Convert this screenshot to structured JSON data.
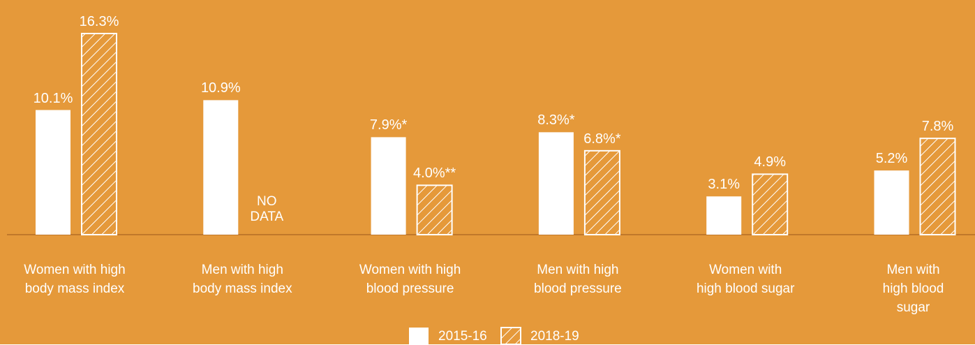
{
  "chart_data": {
    "type": "bar",
    "categories": [
      "Women with high\nbody mass index",
      "Men with high\nbody mass index",
      "Women with high\nblood pressure",
      "Men with high\nblood pressure",
      "Women with\nhigh blood sugar",
      "Men with\nhigh blood sugar"
    ],
    "series": [
      {
        "name": "2015-16",
        "color": "#ffffff",
        "pattern": "solid",
        "values": [
          10.1,
          10.9,
          7.9,
          8.3,
          3.1,
          5.2
        ],
        "value_labels": [
          "10.1%",
          "10.9%",
          "7.9%*",
          "8.3%*",
          "3.1%",
          "5.2%"
        ]
      },
      {
        "name": "2018-19",
        "color": "#ffffff",
        "pattern": "hatch",
        "values": [
          16.3,
          null,
          4.0,
          6.8,
          4.9,
          7.8
        ],
        "value_labels": [
          "16.3%",
          null,
          "4.0%**",
          "6.8%*",
          "4.9%",
          "7.8%"
        ]
      }
    ],
    "annotations": [
      {
        "series": 1,
        "index": 1,
        "text": "NO\nDATA"
      }
    ],
    "background": "#e5993a"
  }
}
